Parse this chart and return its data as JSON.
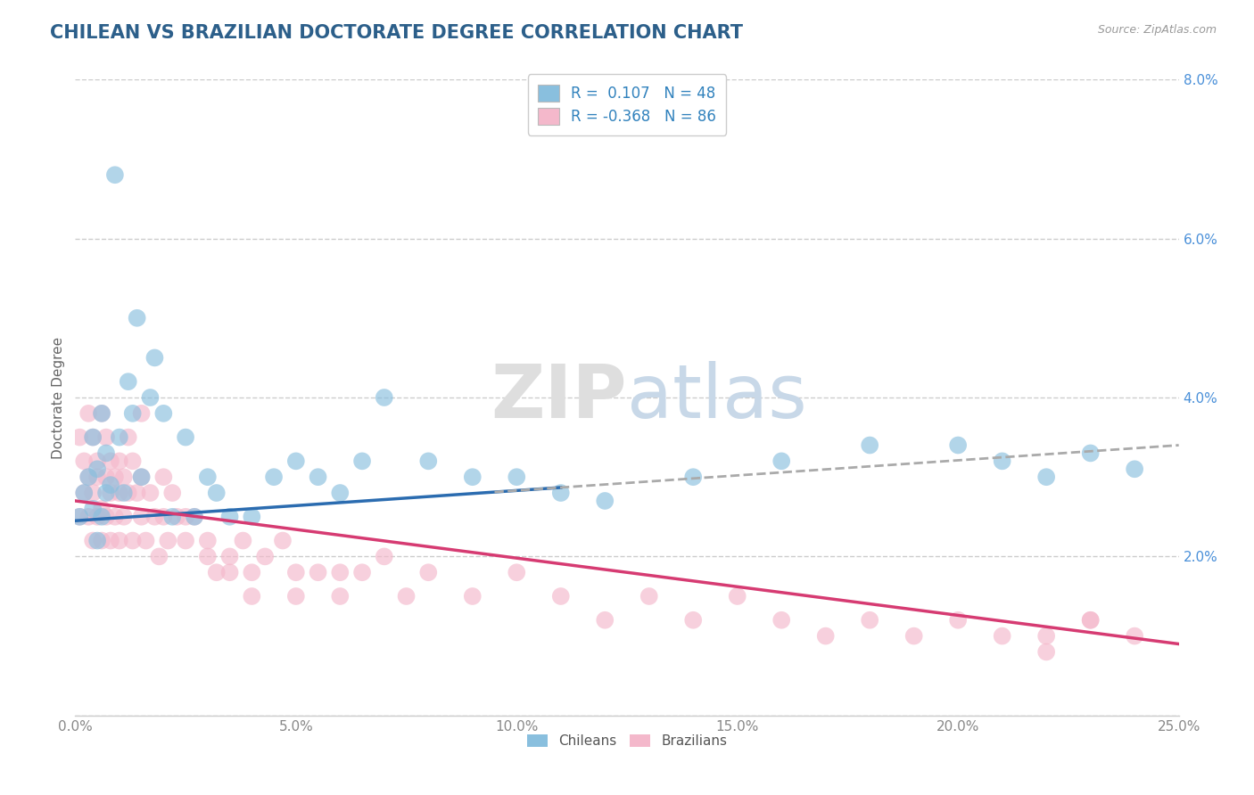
{
  "title": "CHILEAN VS BRAZILIAN DOCTORATE DEGREE CORRELATION CHART",
  "source_text": "Source: ZipAtlas.com",
  "ylabel": "Doctorate Degree",
  "xlim": [
    0.0,
    0.25
  ],
  "ylim": [
    0.0,
    0.08
  ],
  "xticks": [
    0.0,
    0.05,
    0.1,
    0.15,
    0.2,
    0.25
  ],
  "yticks": [
    0.0,
    0.02,
    0.04,
    0.06,
    0.08
  ],
  "xtick_labels": [
    "0.0%",
    "5.0%",
    "10.0%",
    "15.0%",
    "20.0%",
    "25.0%"
  ],
  "ytick_labels": [
    "",
    "2.0%",
    "4.0%",
    "6.0%",
    "8.0%"
  ],
  "chilean_R": 0.107,
  "chilean_N": 48,
  "brazilian_R": -0.368,
  "brazilian_N": 86,
  "blue_color": "#89bfde",
  "pink_color": "#f4b8cb",
  "blue_line_color": "#2b6cb0",
  "pink_line_color": "#d63b72",
  "dash_line_color": "#aaaaaa",
  "title_color": "#2c5f8a",
  "axis_label_color": "#666666",
  "tick_color_x": "#888888",
  "tick_color_y": "#4a90d9",
  "grid_color": "#cccccc",
  "watermark_color": "#dedede",
  "legend_text_color": "#3182bd",
  "chileans_label": "Chileans",
  "brazilians_label": "Brazilians",
  "chilean_trend_x0": 0.0,
  "chilean_trend_y0": 0.0245,
  "chilean_trend_x1": 0.25,
  "chilean_trend_y1": 0.034,
  "dash_trend_x0": 0.1,
  "dash_trend_y0": 0.03,
  "dash_trend_x1": 0.25,
  "dash_trend_y1": 0.038,
  "brazilian_trend_x0": 0.0,
  "brazilian_trend_y0": 0.027,
  "brazilian_trend_x1": 0.25,
  "brazilian_trend_y1": 0.009,
  "chilean_x": [
    0.001,
    0.002,
    0.003,
    0.004,
    0.004,
    0.005,
    0.005,
    0.006,
    0.006,
    0.007,
    0.007,
    0.008,
    0.009,
    0.01,
    0.011,
    0.012,
    0.013,
    0.014,
    0.015,
    0.017,
    0.018,
    0.02,
    0.022,
    0.025,
    0.027,
    0.03,
    0.032,
    0.035,
    0.04,
    0.045,
    0.05,
    0.055,
    0.06,
    0.065,
    0.07,
    0.08,
    0.09,
    0.1,
    0.11,
    0.12,
    0.14,
    0.16,
    0.18,
    0.2,
    0.21,
    0.22,
    0.23,
    0.24
  ],
  "chilean_y": [
    0.025,
    0.028,
    0.03,
    0.026,
    0.035,
    0.022,
    0.031,
    0.025,
    0.038,
    0.028,
    0.033,
    0.029,
    0.068,
    0.035,
    0.028,
    0.042,
    0.038,
    0.05,
    0.03,
    0.04,
    0.045,
    0.038,
    0.025,
    0.035,
    0.025,
    0.03,
    0.028,
    0.025,
    0.025,
    0.03,
    0.032,
    0.03,
    0.028,
    0.032,
    0.04,
    0.032,
    0.03,
    0.03,
    0.028,
    0.027,
    0.03,
    0.032,
    0.034,
    0.034,
    0.032,
    0.03,
    0.033,
    0.031
  ],
  "brazilian_x": [
    0.001,
    0.001,
    0.002,
    0.002,
    0.003,
    0.003,
    0.003,
    0.004,
    0.004,
    0.004,
    0.005,
    0.005,
    0.005,
    0.006,
    0.006,
    0.006,
    0.007,
    0.007,
    0.007,
    0.008,
    0.008,
    0.008,
    0.009,
    0.009,
    0.01,
    0.01,
    0.01,
    0.011,
    0.011,
    0.012,
    0.012,
    0.013,
    0.013,
    0.014,
    0.015,
    0.015,
    0.016,
    0.017,
    0.018,
    0.019,
    0.02,
    0.021,
    0.022,
    0.023,
    0.025,
    0.027,
    0.03,
    0.032,
    0.035,
    0.038,
    0.04,
    0.043,
    0.047,
    0.05,
    0.055,
    0.06,
    0.065,
    0.07,
    0.075,
    0.08,
    0.09,
    0.1,
    0.11,
    0.12,
    0.13,
    0.14,
    0.15,
    0.16,
    0.17,
    0.18,
    0.19,
    0.2,
    0.21,
    0.22,
    0.23,
    0.24,
    0.015,
    0.02,
    0.025,
    0.03,
    0.035,
    0.04,
    0.05,
    0.06,
    0.22,
    0.23
  ],
  "brazilian_y": [
    0.035,
    0.025,
    0.032,
    0.028,
    0.03,
    0.038,
    0.025,
    0.028,
    0.022,
    0.035,
    0.03,
    0.025,
    0.032,
    0.026,
    0.038,
    0.022,
    0.03,
    0.025,
    0.035,
    0.028,
    0.032,
    0.022,
    0.03,
    0.025,
    0.028,
    0.032,
    0.022,
    0.03,
    0.025,
    0.035,
    0.028,
    0.032,
    0.022,
    0.028,
    0.03,
    0.025,
    0.022,
    0.028,
    0.025,
    0.02,
    0.025,
    0.022,
    0.028,
    0.025,
    0.022,
    0.025,
    0.022,
    0.018,
    0.02,
    0.022,
    0.018,
    0.02,
    0.022,
    0.018,
    0.018,
    0.015,
    0.018,
    0.02,
    0.015,
    0.018,
    0.015,
    0.018,
    0.015,
    0.012,
    0.015,
    0.012,
    0.015,
    0.012,
    0.01,
    0.012,
    0.01,
    0.012,
    0.01,
    0.008,
    0.012,
    0.01,
    0.038,
    0.03,
    0.025,
    0.02,
    0.018,
    0.015,
    0.015,
    0.018,
    0.01,
    0.012
  ]
}
